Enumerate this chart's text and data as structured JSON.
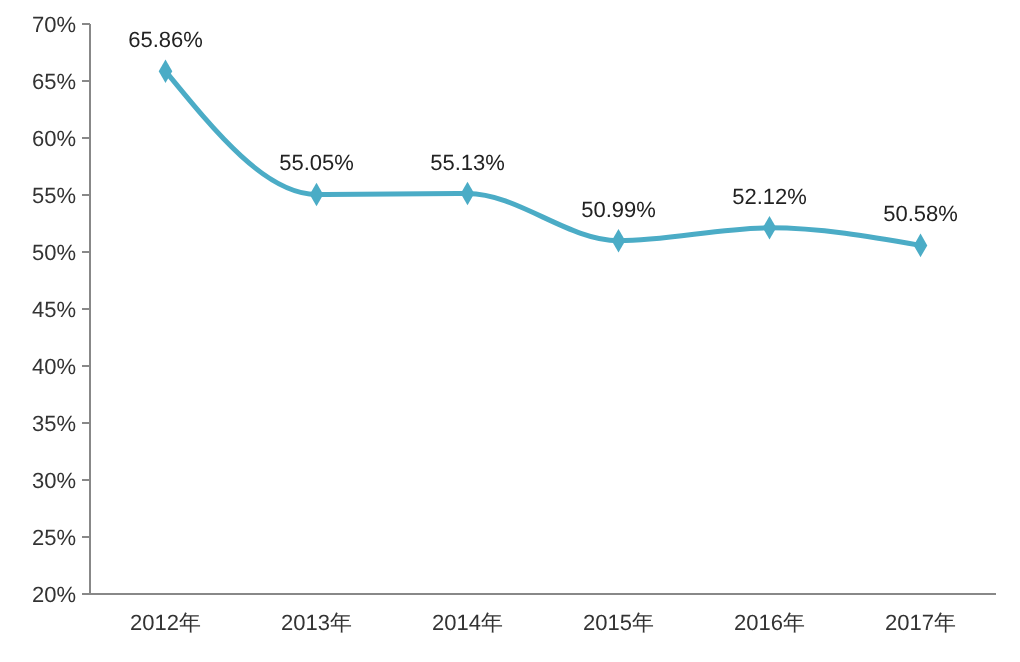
{
  "chart_data": {
    "type": "line",
    "categories": [
      "2012年",
      "2013年",
      "2014年",
      "2015年",
      "2016年",
      "2017年"
    ],
    "series": [
      {
        "color": "#4bacc6",
        "values": [
          65.86,
          55.05,
          55.13,
          50.99,
          52.12,
          50.58
        ],
        "value_labels": [
          "65.86%",
          "55.05%",
          "55.13%",
          "50.99%",
          "52.12%",
          "50.58%"
        ]
      }
    ],
    "ylim": [
      20,
      70
    ],
    "yticks": [
      {
        "value": 20,
        "label": "20%"
      },
      {
        "value": 25,
        "label": "25%"
      },
      {
        "value": 30,
        "label": "30%"
      },
      {
        "value": 35,
        "label": "35%"
      },
      {
        "value": 40,
        "label": "40%"
      },
      {
        "value": 45,
        "label": "45%"
      },
      {
        "value": 50,
        "label": "50%"
      },
      {
        "value": 55,
        "label": "55%"
      },
      {
        "value": 60,
        "label": "60%"
      },
      {
        "value": 65,
        "label": "65%"
      },
      {
        "value": 70,
        "label": "70%"
      }
    ],
    "grid": false,
    "marker": "diamond",
    "line_style": "solid"
  }
}
